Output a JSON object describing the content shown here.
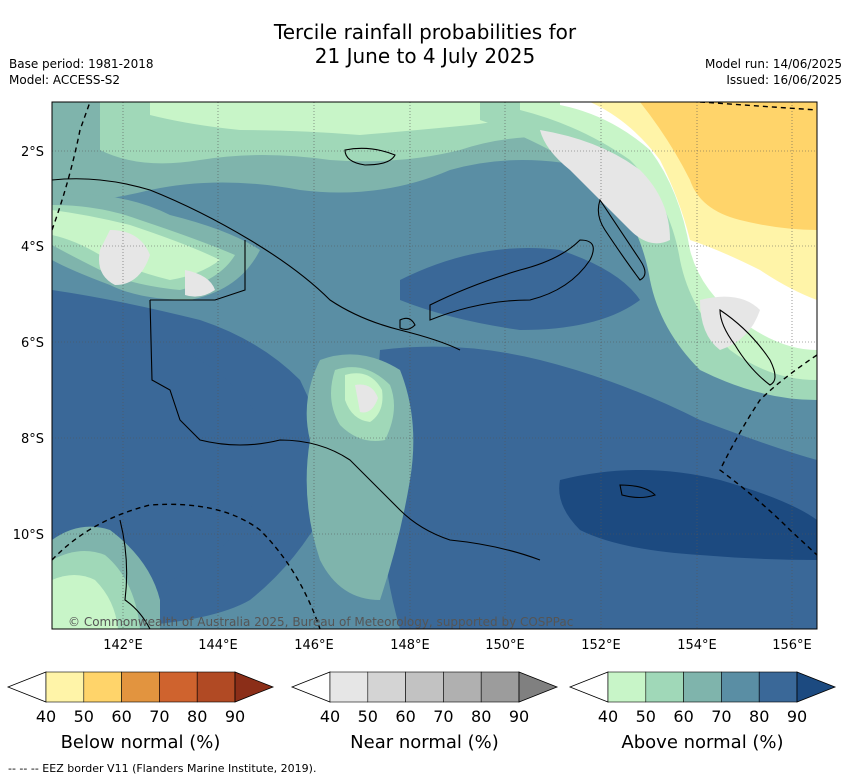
{
  "title_line1": "Tercile rainfall probabilities for",
  "title_line2": "21 June to 4 July 2025",
  "base_period": "Base period: 1981-2018",
  "model": "Model: ACCESS-S2",
  "model_run": "Model run: 14/06/2025",
  "issued": "Issued: 16/06/2025",
  "copyright": "© Commonwealth of Australia 2025, Bureau of Meteorology, supported by COSPPac",
  "lat_labels": [
    "2°S",
    "4°S",
    "6°S",
    "8°S",
    "10°S"
  ],
  "lon_labels": [
    "142°E",
    "144°E",
    "146°E",
    "148°E",
    "150°E",
    "152°E",
    "154°E",
    "156°E"
  ],
  "colorbars": [
    {
      "label": "Below normal (%)",
      "ticks": [
        "40",
        "50",
        "60",
        "70",
        "80",
        "90"
      ],
      "colors": [
        "#fff4a8",
        "#ffd46a",
        "#e2943f",
        "#cf632e",
        "#b14a24",
        "#8b2e18"
      ]
    },
    {
      "label": "Near normal (%)",
      "ticks": [
        "40",
        "50",
        "60",
        "70",
        "80",
        "90"
      ],
      "colors": [
        "#e6e6e6",
        "#d4d4d4",
        "#c2c2c2",
        "#b0b0b0",
        "#9c9c9c",
        "#808080"
      ]
    },
    {
      "label": "Above normal (%)",
      "ticks": [
        "40",
        "50",
        "60",
        "70",
        "80",
        "90"
      ],
      "colors": [
        "#c8f5c8",
        "#a0d8b8",
        "#7fb4ac",
        "#5a8ea4",
        "#3a6898",
        "#1c4a80"
      ]
    }
  ],
  "footer": "--  --  -- EEZ border V11 (Flanders Marine Institute, 2019).",
  "colors": {
    "above_50": "#a0d8b8",
    "above_60": "#7fb4ac",
    "above_70": "#5a8ea4",
    "above_80": "#3a6898",
    "above_90": "#1c4a80",
    "near_40": "#e6e6e6",
    "below_40": "#fff4a8",
    "below_50": "#ffd46a",
    "above_40": "#c8f5c8"
  }
}
